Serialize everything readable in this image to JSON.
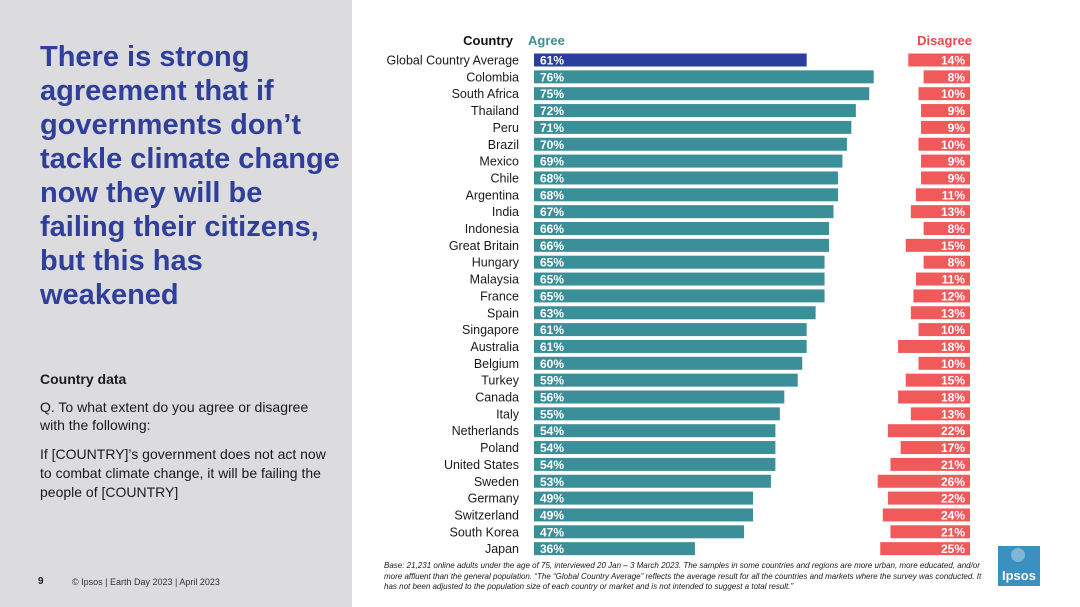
{
  "slide": {
    "headline": "There is strong agreement that if governments don’t tackle climate change now they will be failing their citizens, but this has weakened",
    "section_label": "Country data",
    "question": "Q. To what extent do you agree or disagree with the following:",
    "statement": "If [COUNTRY]’s government does not act now to combat climate change, it will be failing the people of [COUNTRY]",
    "page_number": "9",
    "footer": "© Ipsos | Earth Day 2023 | April 2023",
    "base_note": "Base: 21,231 online adults under the age of 75, interviewed 20 Jan – 3 March 2023. The samples in some countries and regions are more urban, more educated, and/or more affluent than the general population. “The “Global Country Average” reflects the average result for all the countries and markets where the survey was conducted. It has not been adjusted to the population size of each country or market and is not intended to suggest a total result.”",
    "logo_text": "Ipsos"
  },
  "colors": {
    "headline": "#2f3f9a",
    "agree_bar": "#3b8f98",
    "average_bar": "#2a3f9d",
    "disagree_bar": "#f05a5a",
    "agree_header": "#3b8f98",
    "disagree_header": "#e84a4a"
  },
  "chart_data": {
    "type": "bar",
    "orientation": "horizontal",
    "category_header": "Country",
    "categories": [
      "Global Country Average",
      "Colombia",
      "South Africa",
      "Thailand",
      "Peru",
      "Brazil",
      "Mexico",
      "Chile",
      "Argentina",
      "India",
      "Indonesia",
      "Great Britain",
      "Hungary",
      "Malaysia",
      "France",
      "Spain",
      "Singapore",
      "Australia",
      "Belgium",
      "Turkey",
      "Canada",
      "Italy",
      "Netherlands",
      "Poland",
      "United States",
      "Sweden",
      "Germany",
      "Switzerland",
      "South Korea",
      "Japan"
    ],
    "series": [
      {
        "name": "Agree",
        "values": [
          61,
          76,
          75,
          72,
          71,
          70,
          69,
          68,
          68,
          67,
          66,
          66,
          65,
          65,
          65,
          63,
          61,
          61,
          60,
          59,
          56,
          55,
          54,
          54,
          54,
          53,
          49,
          49,
          47,
          36
        ]
      },
      {
        "name": "Disagree",
        "values": [
          14,
          8,
          10,
          9,
          9,
          10,
          9,
          9,
          11,
          13,
          8,
          15,
          8,
          11,
          12,
          13,
          10,
          18,
          10,
          15,
          18,
          13,
          22,
          17,
          21,
          26,
          22,
          24,
          21,
          25
        ]
      }
    ],
    "value_suffix": "%",
    "xlim": [
      0,
      100
    ]
  }
}
